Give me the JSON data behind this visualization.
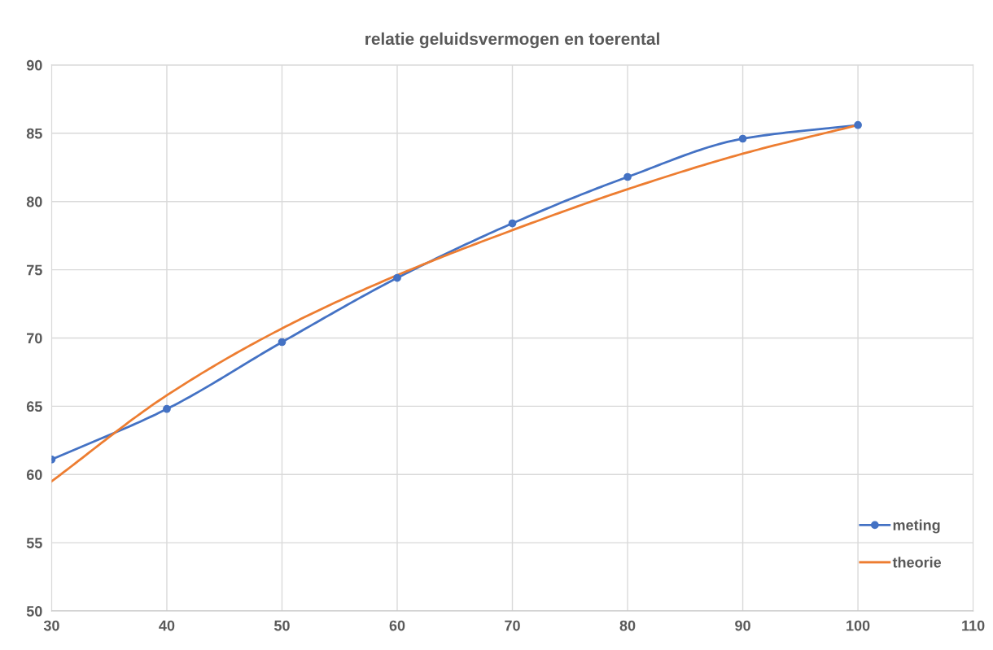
{
  "chart_data": {
    "type": "line",
    "title": "relatie geluidsvermogen en toerental",
    "x": [
      30,
      40,
      50,
      60,
      70,
      80,
      90,
      100
    ],
    "series": [
      {
        "name": "meting",
        "color": "#4472c4",
        "marker": "circle",
        "values": [
          61.1,
          64.8,
          69.7,
          74.4,
          78.4,
          81.8,
          84.6,
          85.6
        ]
      },
      {
        "name": "theorie",
        "color": "#ed7d31",
        "marker": "none",
        "values": [
          59.5,
          65.8,
          70.7,
          74.6,
          77.9,
          80.9,
          83.5,
          85.6
        ]
      }
    ],
    "xlim": [
      30,
      110
    ],
    "xticks": [
      30,
      40,
      50,
      60,
      70,
      80,
      90,
      100,
      110
    ],
    "ylim": [
      50,
      90
    ],
    "yticks": [
      50,
      55,
      60,
      65,
      70,
      75,
      80,
      85,
      90
    ],
    "grid": true,
    "legend": "bottom right",
    "line_style": "solid"
  }
}
